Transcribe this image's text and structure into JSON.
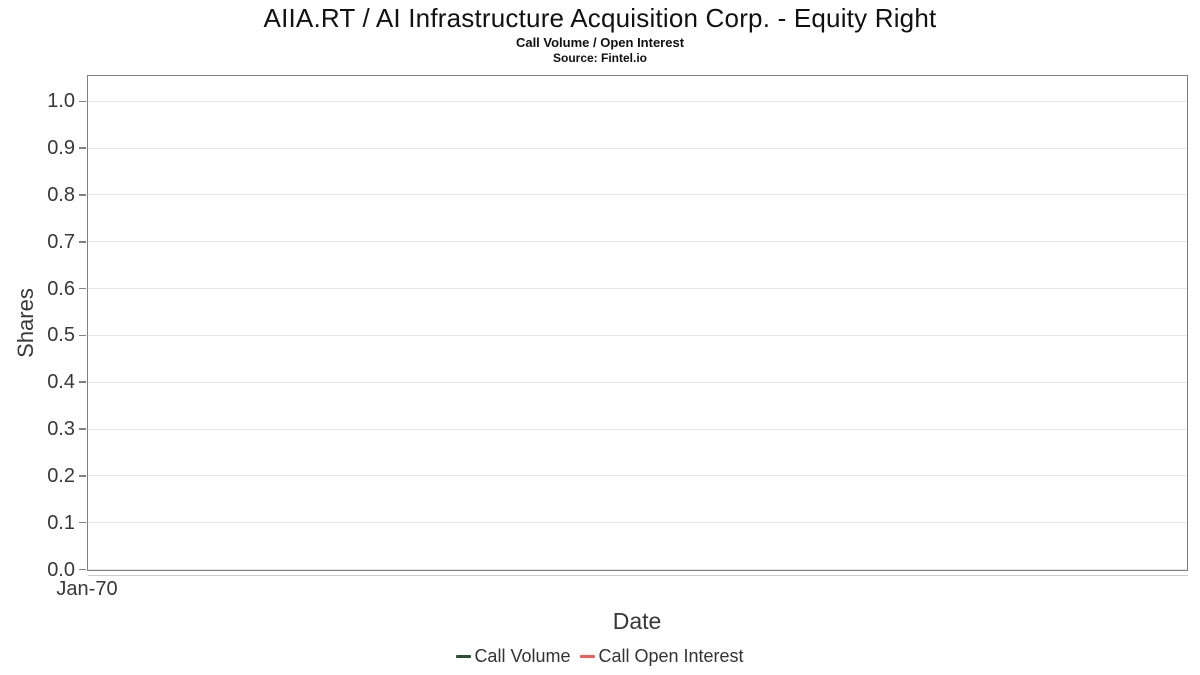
{
  "header": {
    "title": "AIIA.RT / AI Infrastructure Acquisition Corp. - Equity Right",
    "subtitle": "Call Volume / Open Interest",
    "source": "Source: Fintel.io"
  },
  "chart_data": {
    "type": "line",
    "title": "AIIA.RT / AI Infrastructure Acquisition Corp. - Equity Right",
    "subtitle": "Call Volume / Open Interest",
    "source": "Source: Fintel.io",
    "xlabel": "Date",
    "ylabel": "Shares",
    "x_tick_labels": [
      "Jan-70"
    ],
    "y_tick_labels": [
      "0.0",
      "0.1",
      "0.2",
      "0.3",
      "0.4",
      "0.5",
      "0.6",
      "0.7",
      "0.8",
      "0.9",
      "1.0"
    ],
    "y_tick_values": [
      0.0,
      0.1,
      0.2,
      0.3,
      0.4,
      0.5,
      0.6,
      0.7,
      0.8,
      0.9,
      1.0
    ],
    "ylim": [
      0,
      1.053
    ],
    "grid": true,
    "legend_position": "bottom",
    "series": [
      {
        "name": "Call Volume",
        "color": "#2a5134",
        "x": [],
        "values": []
      },
      {
        "name": "Call Open Interest",
        "color": "#f45b5b",
        "x": [],
        "values": []
      }
    ]
  },
  "colors": {
    "background": "#ffffff",
    "plot_border": "#808080",
    "gridline": "#e6e6e6",
    "axis_shadow": "#cccccc",
    "tick_text": "#383838",
    "legend_text": "#333333"
  }
}
